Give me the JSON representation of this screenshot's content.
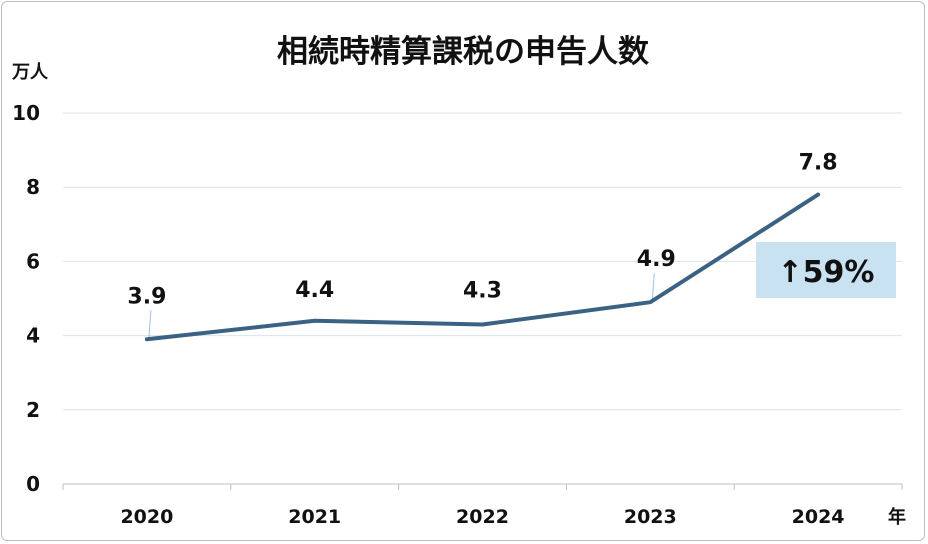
{
  "chart_data": {
    "type": "line",
    "title": "相続時精算課税の申告人数",
    "ylabel": "万人",
    "xlabel": "年",
    "categories": [
      "2020",
      "2021",
      "2022",
      "2023",
      "2024"
    ],
    "values": [
      3.9,
      4.4,
      4.3,
      4.9,
      7.8
    ],
    "data_labels": [
      "3.9",
      "4.4",
      "4.3",
      "4.9",
      "7.8"
    ],
    "ylim": [
      0,
      10
    ],
    "yticks": [
      "0",
      "2",
      "4",
      "6",
      "8",
      "10"
    ],
    "grid": true,
    "callout": "↑59%",
    "colors": {
      "line": "#3b6282",
      "grid": "#d9e2ee",
      "callout_bg": "#c9e2f2",
      "leader": "#9dc3e6"
    }
  }
}
